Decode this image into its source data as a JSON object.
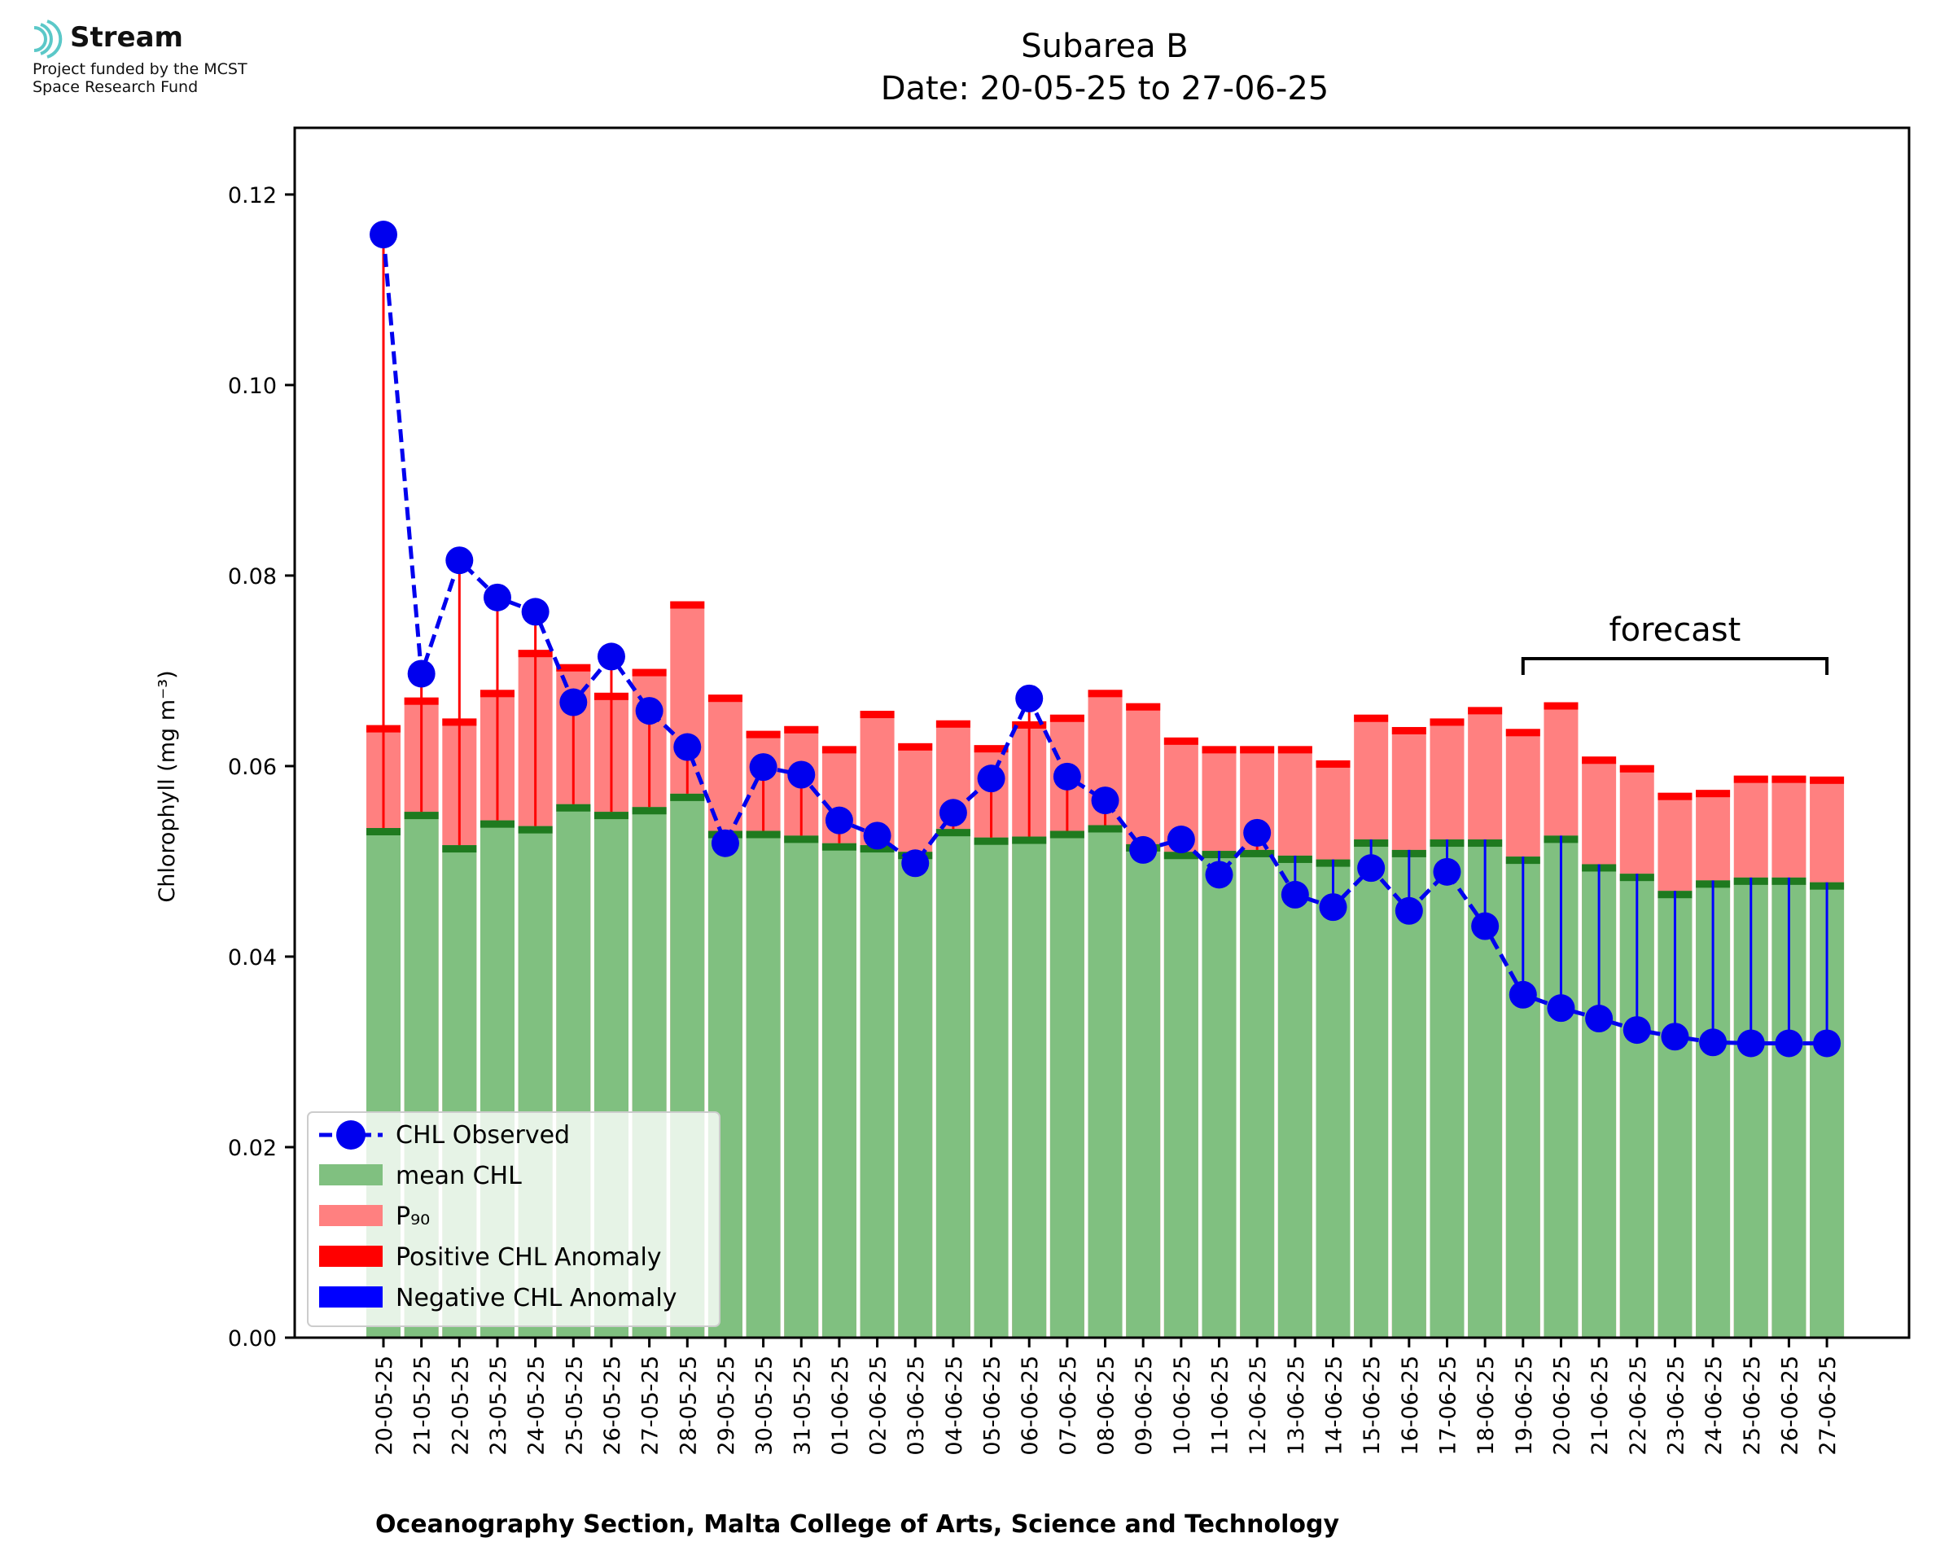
{
  "logo": {
    "brand": "Stream",
    "tagline_1": "Project funded by the MCST",
    "tagline_2": "Space Research Fund",
    "icon": "wave-arcs-icon",
    "icon_color": "#5bc8c8"
  },
  "chart_data": {
    "type": "bar",
    "title": "Subarea B",
    "subtitle": "Date: 20-05-25 to 27-06-25",
    "ylabel": "Chlorophyll (mg m⁻³)",
    "xlabel": "Oceanography Section, Malta College of Arts, Science and Technology",
    "ylim": [
      0,
      0.127
    ],
    "yticks": [
      "0.00",
      "0.02",
      "0.04",
      "0.06",
      "0.08",
      "0.10",
      "0.12"
    ],
    "categories": [
      "20-05-25",
      "21-05-25",
      "22-05-25",
      "23-05-25",
      "24-05-25",
      "25-05-25",
      "26-05-25",
      "27-05-25",
      "28-05-25",
      "29-05-25",
      "30-05-25",
      "31-05-25",
      "01-06-25",
      "02-06-25",
      "03-06-25",
      "04-06-25",
      "05-06-25",
      "06-06-25",
      "07-06-25",
      "08-06-25",
      "09-06-25",
      "10-06-25",
      "11-06-25",
      "12-06-25",
      "13-06-25",
      "14-06-25",
      "15-06-25",
      "16-06-25",
      "17-06-25",
      "18-06-25",
      "19-06-25",
      "20-06-25",
      "21-06-25",
      "22-06-25",
      "23-06-25",
      "24-06-25",
      "25-06-25",
      "26-06-25",
      "27-06-25"
    ],
    "series": [
      {
        "name": "CHL Observed",
        "type": "line",
        "color": "#0000ee",
        "values": [
          0.1158,
          0.0697,
          0.0816,
          0.0777,
          0.0762,
          0.0667,
          0.0715,
          0.0658,
          0.062,
          0.0519,
          0.0599,
          0.0591,
          0.0543,
          0.0527,
          0.0498,
          0.0551,
          0.0587,
          0.0671,
          0.0589,
          0.0564,
          0.0512,
          0.0523,
          0.0486,
          0.053,
          0.0465,
          0.0452,
          0.0493,
          0.0448,
          0.0489,
          0.0432,
          0.036,
          0.0346,
          0.0335,
          0.0323,
          0.0316,
          0.031,
          0.0309,
          0.0309,
          0.0309
        ]
      },
      {
        "name": "mean CHL",
        "type": "bar",
        "color": "#80c080",
        "values": [
          0.0535,
          0.0552,
          0.0517,
          0.0543,
          0.0537,
          0.056,
          0.0552,
          0.0557,
          0.0571,
          0.0532,
          0.0532,
          0.0527,
          0.0519,
          0.0517,
          0.051,
          0.0534,
          0.0525,
          0.0526,
          0.0532,
          0.0538,
          0.0518,
          0.051,
          0.0511,
          0.0512,
          0.0506,
          0.0502,
          0.0523,
          0.0512,
          0.0523,
          0.0523,
          0.0505,
          0.0527,
          0.0497,
          0.0487,
          0.0469,
          0.048,
          0.0483,
          0.0483,
          0.0478
        ]
      },
      {
        "name": "P₉₀",
        "type": "bar",
        "color": "#ff8080",
        "values": [
          0.0643,
          0.0672,
          0.065,
          0.068,
          0.0722,
          0.0707,
          0.0677,
          0.0702,
          0.0773,
          0.0675,
          0.0637,
          0.0642,
          0.0621,
          0.0658,
          0.0624,
          0.0648,
          0.0622,
          0.0647,
          0.0654,
          0.068,
          0.0666,
          0.063,
          0.0621,
          0.0621,
          0.0621,
          0.0606,
          0.0654,
          0.0641,
          0.065,
          0.0662,
          0.0639,
          0.0667,
          0.061,
          0.0601,
          0.0572,
          0.0575,
          0.059,
          0.059,
          0.0589
        ]
      },
      {
        "name": "Positive CHL Anomaly",
        "type": "marker",
        "color": "#ff0000"
      },
      {
        "name": "Negative CHL Anomaly",
        "type": "marker",
        "color": "#0000ff"
      }
    ],
    "annotations": [
      {
        "text": "forecast",
        "from": "19-06-25",
        "to": "27-06-25"
      }
    ],
    "legend": "lower-left",
    "grid": false
  }
}
